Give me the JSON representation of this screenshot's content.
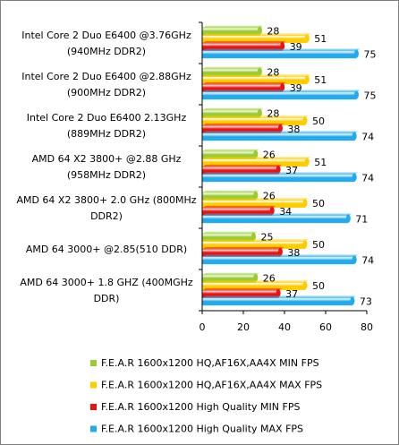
{
  "chart_data": {
    "type": "bar",
    "orientation": "horizontal",
    "title": "",
    "xlabel": "",
    "ylabel": "",
    "xlim": [
      0,
      80
    ],
    "ticks": [
      "0",
      "20",
      "40",
      "60",
      "80"
    ],
    "grid": false,
    "legend_position": "bottom",
    "categories": [
      [
        "Intel Core 2 Duo E6400 @3.76GHz",
        "(940MHz DDR2)"
      ],
      [
        "Intel Core 2 Duo E6400 @2.88GHz",
        "(900MHz DDR2)"
      ],
      [
        "Intel Core 2 Duo E6400 2.13GHz",
        "(889MHz DDR2)"
      ],
      [
        "AMD 64 X2 3800+ @2.88 GHz",
        "(958MHz DDR2)"
      ],
      [
        "AMD 64 X2 3800+ 2.0 GHz (800MHz",
        "DDR2)"
      ],
      [
        "AMD 64 3000+ @2.85(510 DDR)"
      ],
      [
        "AMD 64 3000+ 1.8 GHZ (400MGHz",
        "DDR)"
      ]
    ],
    "series": [
      {
        "name": "F.E.A.R 1600x1200 HQ,AF16X,AA4X MIN FPS",
        "color": "#99cc33",
        "values": [
          28,
          28,
          28,
          26,
          26,
          25,
          26
        ]
      },
      {
        "name": "F.E.A.R 1600x1200 HQ,AF16X,AA4X MAX FPS",
        "color": "#ffcc00",
        "values": [
          51,
          51,
          50,
          51,
          50,
          50,
          50
        ]
      },
      {
        "name": "F.E.A.R 1600x1200 High Quality  MIN  FPS",
        "color": "#ee1111",
        "values": [
          39,
          39,
          38,
          37,
          34,
          38,
          37
        ]
      },
      {
        "name": "F.E.A.R 1600x1200 High Quality  MAX FPS",
        "color": "#22aaee",
        "values": [
          75,
          75,
          74,
          74,
          71,
          74,
          73
        ]
      }
    ]
  }
}
